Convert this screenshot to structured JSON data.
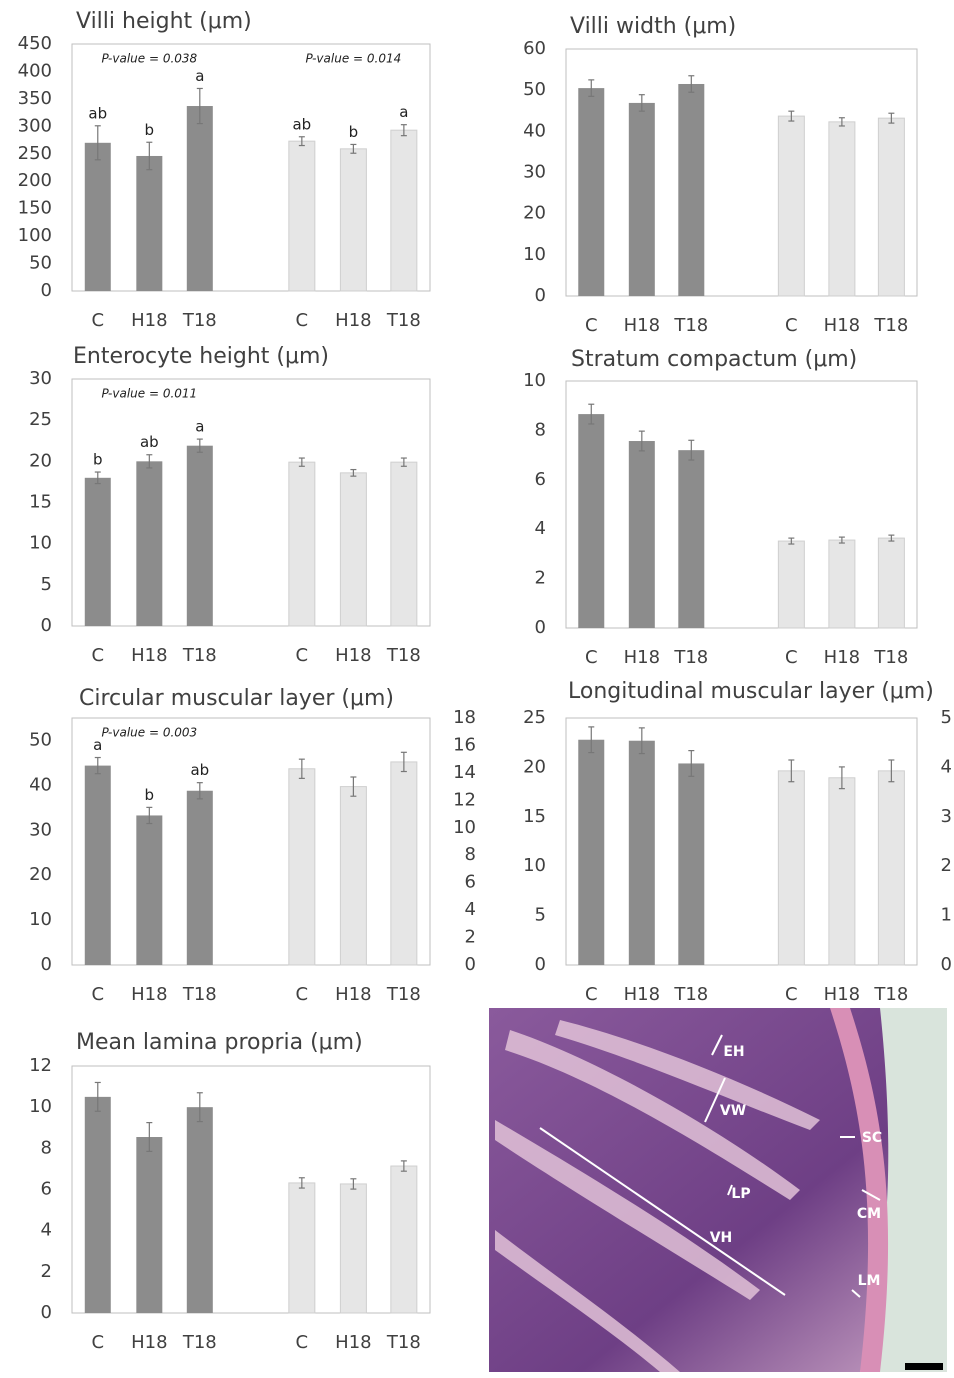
{
  "chart_data": [
    {
      "type": "bar",
      "title": "Villi height (μm)",
      "ylim": [
        0,
        450
      ],
      "yticks": [
        0,
        50,
        100,
        150,
        200,
        250,
        300,
        350,
        400,
        450
      ],
      "annotations": [
        "P-value = 0.038",
        "P-value = 0.014"
      ],
      "groups": [
        {
          "color": "#8c8c8c",
          "categories": [
            "C",
            "H18",
            "T18"
          ],
          "values": [
            270,
            246,
            337
          ],
          "errors": [
            31,
            25,
            32
          ],
          "letters": [
            "ab",
            "b",
            "a"
          ]
        },
        {
          "color": "#e6e6e6",
          "categories": [
            "C",
            "H18",
            "T18"
          ],
          "values": [
            273,
            259,
            293
          ],
          "errors": [
            8,
            8,
            10
          ],
          "letters": [
            "ab",
            "b",
            "a"
          ]
        }
      ]
    },
    {
      "type": "bar",
      "title": "Villi width (μm)",
      "ylim": [
        0,
        60
      ],
      "yticks": [
        0,
        10,
        20,
        30,
        40,
        50,
        60
      ],
      "groups": [
        {
          "color": "#8c8c8c",
          "categories": [
            "C",
            "H18",
            "T18"
          ],
          "values": [
            50.5,
            46.9,
            51.5
          ],
          "errors": [
            2,
            2,
            2
          ]
        },
        {
          "color": "#e6e6e6",
          "categories": [
            "C",
            "H18",
            "T18"
          ],
          "values": [
            43.7,
            42.3,
            43.2
          ],
          "errors": [
            1.2,
            1,
            1.2
          ]
        }
      ]
    },
    {
      "type": "bar",
      "title": "Enterocyte height (μm)",
      "ylim": [
        0,
        30
      ],
      "yticks": [
        0,
        5,
        10,
        15,
        20,
        25,
        30
      ],
      "annotations": [
        "P-value = 0.011"
      ],
      "groups": [
        {
          "color": "#8c8c8c",
          "categories": [
            "C",
            "H18",
            "T18"
          ],
          "values": [
            18.0,
            20.0,
            21.9
          ],
          "errors": [
            0.7,
            0.8,
            0.8
          ],
          "letters": [
            "b",
            "ab",
            "a"
          ]
        },
        {
          "color": "#e6e6e6",
          "categories": [
            "C",
            "H18",
            "T18"
          ],
          "values": [
            19.9,
            18.6,
            19.9
          ],
          "errors": [
            0.5,
            0.4,
            0.5
          ]
        }
      ]
    },
    {
      "type": "bar",
      "title": "Stratum compactum (μm)",
      "ylim": [
        0,
        10
      ],
      "yticks": [
        0,
        2,
        4,
        6,
        8,
        10
      ],
      "groups": [
        {
          "color": "#8c8c8c",
          "categories": [
            "C",
            "H18",
            "T18"
          ],
          "values": [
            8.66,
            7.57,
            7.2
          ],
          "errors": [
            0.4,
            0.4,
            0.4
          ]
        },
        {
          "color": "#e6e6e6",
          "categories": [
            "C",
            "H18",
            "T18"
          ],
          "values": [
            3.52,
            3.56,
            3.64
          ],
          "errors": [
            0.12,
            0.12,
            0.12
          ]
        }
      ]
    },
    {
      "type": "bar",
      "title": "Circular muscular layer (μm)",
      "ylim": [
        0,
        55
      ],
      "yticks": [
        0,
        10,
        20,
        30,
        40,
        50
      ],
      "y2lim": [
        0,
        18
      ],
      "y2ticks": [
        0,
        2,
        4,
        6,
        8,
        10,
        12,
        14,
        16,
        18
      ],
      "annotations": [
        "P-value = 0.003"
      ],
      "groups": [
        {
          "color": "#8c8c8c",
          "categories": [
            "C",
            "H18",
            "T18"
          ],
          "values": [
            44.4,
            33.3,
            38.8
          ],
          "errors": [
            1.8,
            1.8,
            1.8
          ],
          "letters": [
            "a",
            "b",
            "ab"
          ]
        },
        {
          "color": "#e6e6e6",
          "axis": "y2",
          "categories": [
            "C",
            "H18",
            "T18"
          ],
          "values": [
            14.3,
            13.0,
            14.8
          ],
          "errors": [
            0.7,
            0.7,
            0.7
          ]
        }
      ]
    },
    {
      "type": "bar",
      "title": "Longitudinal muscular layer (μm)",
      "ylim": [
        0,
        25
      ],
      "yticks": [
        0,
        5,
        10,
        15,
        20,
        25
      ],
      "y2lim": [
        0,
        5
      ],
      "y2ticks": [
        0,
        1,
        2,
        3,
        4,
        5
      ],
      "groups": [
        {
          "color": "#8c8c8c",
          "categories": [
            "C",
            "H18",
            "T18"
          ],
          "values": [
            22.8,
            22.7,
            20.4
          ],
          "errors": [
            1.3,
            1.3,
            1.3
          ]
        },
        {
          "color": "#e6e6e6",
          "axis": "y2",
          "categories": [
            "C",
            "H18",
            "T18"
          ],
          "values": [
            3.93,
            3.79,
            3.93
          ],
          "errors": [
            0.22,
            0.22,
            0.22
          ]
        }
      ]
    },
    {
      "type": "bar",
      "title": "Mean lamina propria (μm)",
      "ylim": [
        0,
        12
      ],
      "yticks": [
        0,
        2,
        4,
        6,
        8,
        10,
        12
      ],
      "groups": [
        {
          "color": "#8c8c8c",
          "categories": [
            "C",
            "H18",
            "T18"
          ],
          "values": [
            10.5,
            8.55,
            10.0
          ],
          "errors": [
            0.7,
            0.7,
            0.7
          ]
        },
        {
          "color": "#e6e6e6",
          "categories": [
            "C",
            "H18",
            "T18"
          ],
          "values": [
            6.32,
            6.27,
            7.14
          ],
          "errors": [
            0.25,
            0.25,
            0.25
          ]
        }
      ]
    }
  ],
  "micrograph": {
    "labels": [
      "EH",
      "VW",
      "SC",
      "LP",
      "CM",
      "VH",
      "LM"
    ]
  }
}
